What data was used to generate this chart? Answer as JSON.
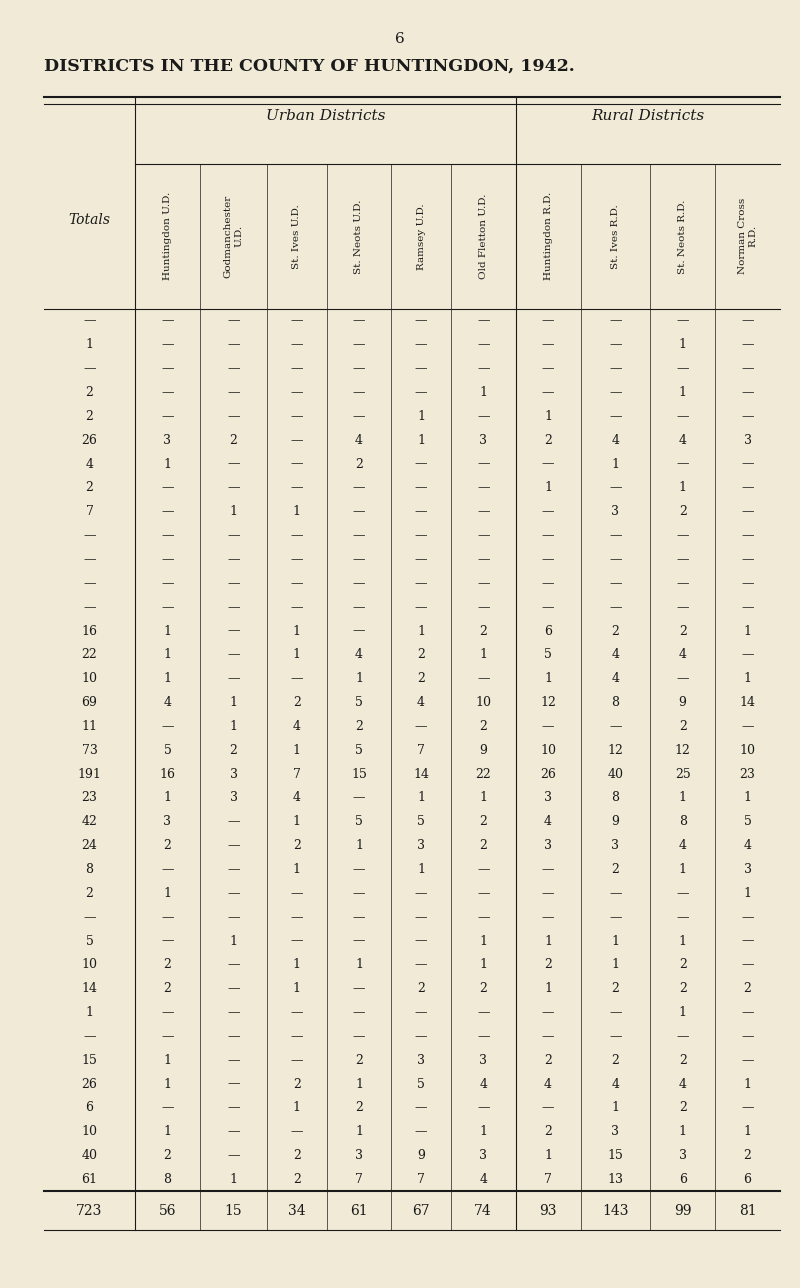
{
  "page_number": "6",
  "title": "DISTRICTS IN THE COUNTY OF HUNTINGDON, 1942.",
  "bg_color": "#f0ead6",
  "text_color": "#1a1a1a",
  "urban_label": "Urban Districts",
  "rural_label": "Rural Districts",
  "totals_label": "Totals",
  "col_headers": [
    "Huntingdon U.D.",
    "Godmanchester\nU.D.",
    "St. Ives U.D.",
    "St. Neots U.D.",
    "Ramsey U.D.",
    "Old Fletton U.D.",
    "Huntingdon R.D.",
    "St. Ives R.D.",
    "St. Neots R.D.",
    "Norman Cross\nR.D."
  ],
  "urban_cols": 6,
  "rural_cols": 4,
  "rows": [
    [
      "—",
      "—",
      "—",
      "—",
      "—",
      "—",
      "—",
      "—",
      "—",
      "—"
    ],
    [
      "1",
      "—",
      "—",
      "—",
      "—",
      "—",
      "—",
      "—",
      "—",
      "1"
    ],
    [
      "—",
      "—",
      "—",
      "—",
      "—",
      "—",
      "—",
      "—",
      "—",
      "—"
    ],
    [
      "2",
      "—",
      "—",
      "—",
      "—",
      "—",
      "1",
      "—",
      "—",
      "1"
    ],
    [
      "2",
      "—",
      "—",
      "—",
      "—",
      "1",
      "—",
      "1",
      "—",
      "—"
    ],
    [
      "26",
      "3",
      "2",
      "—",
      "4",
      "1",
      "3",
      "2",
      "4",
      "4",
      "3"
    ],
    [
      "4",
      "1",
      "—",
      "—",
      "2",
      "—",
      "—",
      "—",
      "1",
      "—"
    ],
    [
      "2",
      "—",
      "—",
      "—",
      "—",
      "—",
      "—",
      "1",
      "—",
      "1"
    ],
    [
      "7",
      "—",
      "1",
      "1",
      "—",
      "—",
      "—",
      "—",
      "3",
      "2",
      "—"
    ],
    [
      "—",
      "—",
      "—",
      "—",
      "—",
      "—",
      "—",
      "—",
      "—",
      "—"
    ],
    [
      "—",
      "—",
      "—",
      "—",
      "—",
      "—",
      "—",
      "—",
      "—",
      "—"
    ],
    [
      "—",
      "—",
      "—",
      "—",
      "—",
      "—",
      "—",
      "—",
      "—",
      "—"
    ],
    [
      "—",
      "—",
      "—",
      "—",
      "—",
      "—",
      "—",
      "—",
      "—",
      "—"
    ],
    [
      "16",
      "1",
      "—",
      "1",
      "—",
      "1",
      "2",
      "6",
      "2",
      "2",
      "1"
    ],
    [
      "22",
      "1",
      "—",
      "1",
      "4",
      "2",
      "1",
      "5",
      "4",
      "4",
      "—"
    ],
    [
      "10",
      "1",
      "—",
      "—",
      "1",
      "2",
      "—",
      "1",
      "4",
      "—",
      "1"
    ],
    [
      "69",
      "4",
      "1",
      "2",
      "5",
      "4",
      "10",
      "12",
      "8",
      "9",
      "14"
    ],
    [
      "11",
      "—",
      "1",
      "4",
      "2",
      "—",
      "2",
      "—",
      "—",
      "2",
      "—"
    ],
    [
      "73",
      "5",
      "2",
      "1",
      "5",
      "7",
      "9",
      "10",
      "12",
      "12",
      "10"
    ],
    [
      "191",
      "16",
      "3",
      "7",
      "15",
      "14",
      "22",
      "26",
      "40",
      "25",
      "23"
    ],
    [
      "23",
      "1",
      "3",
      "4",
      "—",
      "1",
      "1",
      "3",
      "8",
      "1",
      "1"
    ],
    [
      "42",
      "3",
      "—",
      "1",
      "5",
      "5",
      "2",
      "4",
      "9",
      "8",
      "5"
    ],
    [
      "24",
      "2",
      "—",
      "2",
      "1",
      "3",
      "2",
      "3",
      "3",
      "4",
      "4"
    ],
    [
      "8",
      "—",
      "—",
      "1",
      "—",
      "1",
      "—",
      "—",
      "2",
      "1",
      "3"
    ],
    [
      "2",
      "1",
      "—",
      "—",
      "—",
      "—",
      "—",
      "—",
      "—",
      "—",
      "1"
    ],
    [
      "—",
      "—",
      "—",
      "—",
      "—",
      "—",
      "—",
      "—",
      "—",
      "—",
      "—"
    ],
    [
      "5",
      "—",
      "1",
      "—",
      "—",
      "—",
      "1",
      "1",
      "1",
      "1",
      "—"
    ],
    [
      "10",
      "2",
      "—",
      "1",
      "1",
      "—",
      "1",
      "2",
      "1",
      "2",
      "—"
    ],
    [
      "14",
      "2",
      "—",
      "1",
      "—",
      "2",
      "2",
      "1",
      "2",
      "2",
      "2"
    ],
    [
      "1",
      "—",
      "—",
      "—",
      "—",
      "—",
      "—",
      "—",
      "—",
      "1",
      "—"
    ],
    [
      "—",
      "—",
      "—",
      "—",
      "—",
      "—",
      "—",
      "—",
      "—",
      "—",
      "—"
    ],
    [
      "15",
      "1",
      "—",
      "—",
      "2",
      "3",
      "3",
      "2",
      "2",
      "2",
      "—"
    ],
    [
      "26",
      "1",
      "—",
      "2",
      "1",
      "5",
      "4",
      "4",
      "4",
      "4",
      "1"
    ],
    [
      "6",
      "—",
      "—",
      "1",
      "2",
      "—",
      "—",
      "—",
      "1",
      "2",
      "—"
    ],
    [
      "10",
      "1",
      "—",
      "—",
      "1",
      "—",
      "1",
      "2",
      "3",
      "1",
      "1"
    ],
    [
      "40",
      "2",
      "—",
      "2",
      "3",
      "9",
      "3",
      "1",
      "15",
      "3",
      "2"
    ],
    [
      "61",
      "8",
      "1",
      "2",
      "7",
      "7",
      "4",
      "7",
      "13",
      "6",
      "6"
    ]
  ],
  "totals_row": [
    "723",
    "56",
    "15",
    "34",
    "61",
    "67",
    "74",
    "93",
    "143",
    "99",
    "81"
  ]
}
